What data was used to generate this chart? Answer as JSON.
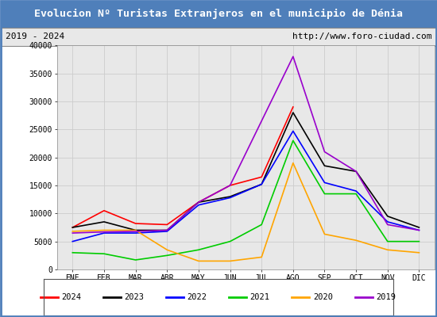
{
  "title": "Evolucion Nº Turistas Extranjeros en el municipio de Dénia",
  "subtitle_left": "2019 - 2024",
  "subtitle_right": "http://www.foro-ciudad.com",
  "title_bg_color": "#4f7fba",
  "title_text_color": "#ffffff",
  "subtitle_bg_color": "#e8e8e8",
  "plot_bg_color": "#e8e8e8",
  "months": [
    "ENE",
    "FEB",
    "MAR",
    "ABR",
    "MAY",
    "JUN",
    "JUL",
    "AGO",
    "SEP",
    "OCT",
    "NOV",
    "DIC"
  ],
  "ylim": [
    0,
    40000
  ],
  "yticks": [
    0,
    5000,
    10000,
    15000,
    20000,
    25000,
    30000,
    35000,
    40000
  ],
  "series": {
    "2024": {
      "color": "#ff0000",
      "data": [
        7500,
        10500,
        8200,
        8000,
        12000,
        15000,
        16500,
        29000,
        null,
        null,
        null,
        null
      ]
    },
    "2023": {
      "color": "#000000",
      "data": [
        7500,
        8500,
        7000,
        7000,
        12000,
        13000,
        15200,
        28000,
        18500,
        17500,
        9500,
        7500
      ]
    },
    "2022": {
      "color": "#0000ff",
      "data": [
        5000,
        6500,
        6500,
        6800,
        11500,
        12800,
        15200,
        24700,
        15500,
        14000,
        8500,
        7000
      ]
    },
    "2021": {
      "color": "#00cc00",
      "data": [
        3000,
        2800,
        1700,
        2500,
        3500,
        5000,
        8000,
        23000,
        13500,
        13500,
        5000,
        5000
      ]
    },
    "2020": {
      "color": "#ffa500",
      "data": [
        6800,
        7000,
        7000,
        3500,
        1500,
        1500,
        2200,
        19000,
        6300,
        5200,
        3500,
        3000
      ]
    },
    "2019": {
      "color": "#9900cc",
      "data": [
        6500,
        6700,
        6800,
        7000,
        12000,
        15000,
        26500,
        38000,
        21000,
        17500,
        8000,
        7000
      ]
    }
  },
  "legend_order": [
    "2024",
    "2023",
    "2022",
    "2021",
    "2020",
    "2019"
  ],
  "outer_bg": "#ffffff",
  "border_color": "#4f7fba"
}
